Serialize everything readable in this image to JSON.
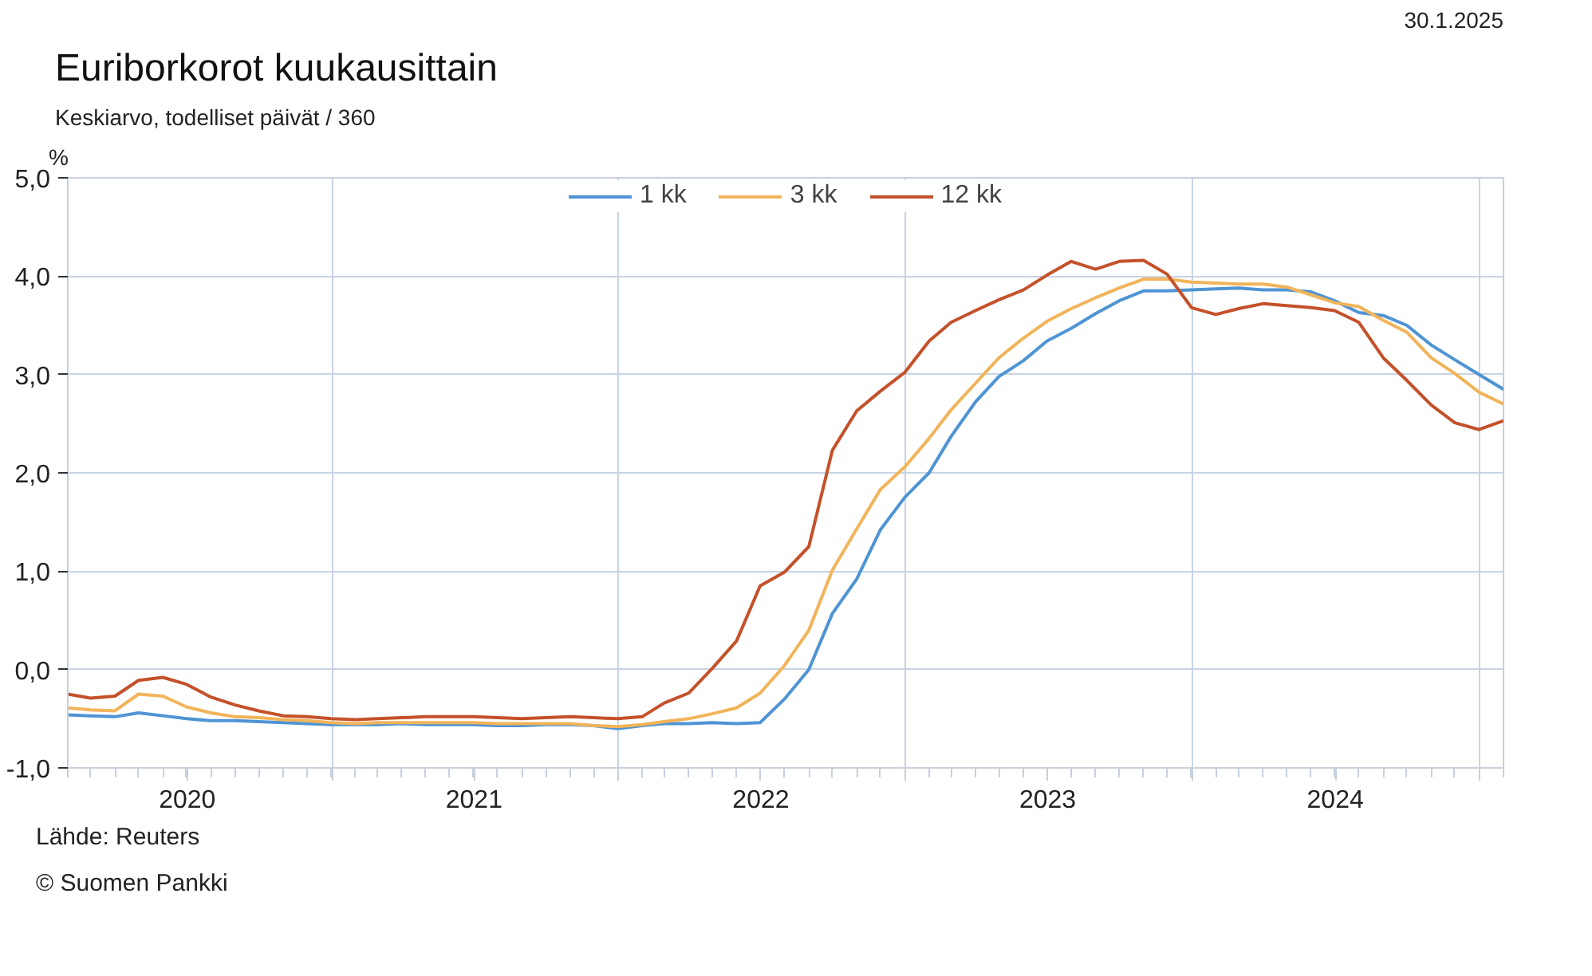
{
  "chart_data": {
    "type": "line",
    "title": "Euriborkorot kuukausittain",
    "subtitle": "Keskiarvo, todelliset päivät / 360",
    "ylabel": "%",
    "annotations": [
      "30.1.2025",
      "Lähde: Reuters",
      "© Suomen Pankki"
    ],
    "x": [
      "2020-01-31",
      "2020-02-29",
      "2020-03-31",
      "2020-04-30",
      "2020-05-31",
      "2020-06-30",
      "2020-07-31",
      "2020-08-31",
      "2020-09-30",
      "2020-10-31",
      "2020-11-30",
      "2020-12-31",
      "2021-01-31",
      "2021-02-28",
      "2021-03-31",
      "2021-04-30",
      "2021-05-31",
      "2021-06-30",
      "2021-07-31",
      "2021-08-31",
      "2021-09-30",
      "2021-10-31",
      "2021-11-30",
      "2021-12-31",
      "2022-01-31",
      "2022-02-28",
      "2022-03-31",
      "2022-04-30",
      "2022-05-31",
      "2022-06-30",
      "2022-07-31",
      "2022-08-31",
      "2022-09-30",
      "2022-10-31",
      "2022-11-30",
      "2022-12-31",
      "2023-01-31",
      "2023-02-28",
      "2023-03-31",
      "2023-04-30",
      "2023-05-31",
      "2023-06-30",
      "2023-07-31",
      "2023-08-31",
      "2023-09-30",
      "2023-10-31",
      "2023-11-30",
      "2023-12-31",
      "2024-01-31",
      "2024-02-29",
      "2024-03-31",
      "2024-04-30",
      "2024-05-31",
      "2024-06-30",
      "2024-07-31",
      "2024-08-31",
      "2024-09-30",
      "2024-10-31",
      "2024-11-30",
      "2024-12-31",
      "2025-01-31"
    ],
    "series": [
      {
        "name": "1 kk",
        "color": "#4f94d4",
        "values": [
          -0.46,
          -0.47,
          -0.48,
          -0.44,
          -0.47,
          -0.5,
          -0.52,
          -0.52,
          -0.53,
          -0.54,
          -0.55,
          -0.56,
          -0.56,
          -0.56,
          -0.55,
          -0.56,
          -0.56,
          -0.56,
          -0.57,
          -0.57,
          -0.56,
          -0.56,
          -0.57,
          -0.6,
          -0.57,
          -0.55,
          -0.55,
          -0.54,
          -0.55,
          -0.54,
          -0.3,
          0.0,
          0.57,
          0.92,
          1.42,
          1.75,
          2.0,
          2.37,
          2.72,
          2.98,
          3.14,
          3.34,
          3.47,
          3.62,
          3.75,
          3.85,
          3.85,
          3.86,
          3.87,
          3.88,
          3.86,
          3.86,
          3.84,
          3.75,
          3.63,
          3.6,
          3.5,
          3.3,
          3.15,
          3.0,
          2.85
        ]
      },
      {
        "name": "3 kk",
        "color": "#f2b45a",
        "values": [
          -0.39,
          -0.41,
          -0.42,
          -0.25,
          -0.27,
          -0.38,
          -0.44,
          -0.48,
          -0.49,
          -0.51,
          -0.52,
          -0.54,
          -0.55,
          -0.54,
          -0.54,
          -0.54,
          -0.54,
          -0.54,
          -0.55,
          -0.55,
          -0.55,
          -0.55,
          -0.57,
          -0.58,
          -0.56,
          -0.53,
          -0.5,
          -0.45,
          -0.39,
          -0.24,
          0.04,
          0.4,
          1.01,
          1.43,
          1.83,
          2.06,
          2.35,
          2.64,
          2.91,
          3.17,
          3.37,
          3.54,
          3.67,
          3.78,
          3.88,
          3.97,
          3.97,
          3.94,
          3.93,
          3.92,
          3.92,
          3.89,
          3.81,
          3.73,
          3.69,
          3.55,
          3.43,
          3.17,
          3.01,
          2.82,
          2.7
        ]
      },
      {
        "name": "12 kk",
        "color": "#c4512a",
        "values": [
          -0.25,
          -0.29,
          -0.27,
          -0.11,
          -0.08,
          -0.15,
          -0.28,
          -0.36,
          -0.42,
          -0.47,
          -0.48,
          -0.5,
          -0.51,
          -0.5,
          -0.49,
          -0.48,
          -0.48,
          -0.48,
          -0.49,
          -0.5,
          -0.49,
          -0.48,
          -0.49,
          -0.5,
          -0.48,
          -0.34,
          -0.24,
          0.01,
          0.29,
          0.85,
          0.99,
          1.25,
          2.23,
          2.63,
          2.83,
          3.02,
          3.34,
          3.53,
          3.65,
          3.76,
          3.86,
          4.01,
          4.15,
          4.07,
          4.15,
          4.16,
          4.02,
          3.68,
          3.61,
          3.67,
          3.72,
          3.7,
          3.68,
          3.65,
          3.53,
          3.17,
          2.94,
          2.69,
          2.51,
          2.44,
          2.53
        ]
      }
    ],
    "xlim": [
      "2020-01-31",
      "2025-01-31"
    ],
    "xticks": [
      {
        "value": "2020-07-01",
        "label": "2020"
      },
      {
        "value": "2021-01-01",
        "label": null
      },
      {
        "value": "2021-07-01",
        "label": "2021"
      },
      {
        "value": "2022-01-01",
        "label": null
      },
      {
        "value": "2022-07-01",
        "label": "2022"
      },
      {
        "value": "2023-01-01",
        "label": null
      },
      {
        "value": "2023-07-01",
        "label": "2023"
      },
      {
        "value": "2024-01-01",
        "label": null
      },
      {
        "value": "2024-07-01",
        "label": "2024"
      },
      {
        "value": "2025-01-01",
        "label": null
      }
    ],
    "ylim": [
      -1,
      5
    ],
    "yticks": [
      {
        "value": -1,
        "label": "-1,0"
      },
      {
        "value": 0,
        "label": "0,0"
      },
      {
        "value": 1,
        "label": "1,0"
      },
      {
        "value": 2,
        "label": "2,0"
      },
      {
        "value": 3,
        "label": "3,0"
      },
      {
        "value": 4,
        "label": "4,0"
      },
      {
        "value": 5,
        "label": "5,0"
      }
    ],
    "grid": true,
    "legend": "top",
    "marker": "none",
    "line_style": "solid"
  }
}
